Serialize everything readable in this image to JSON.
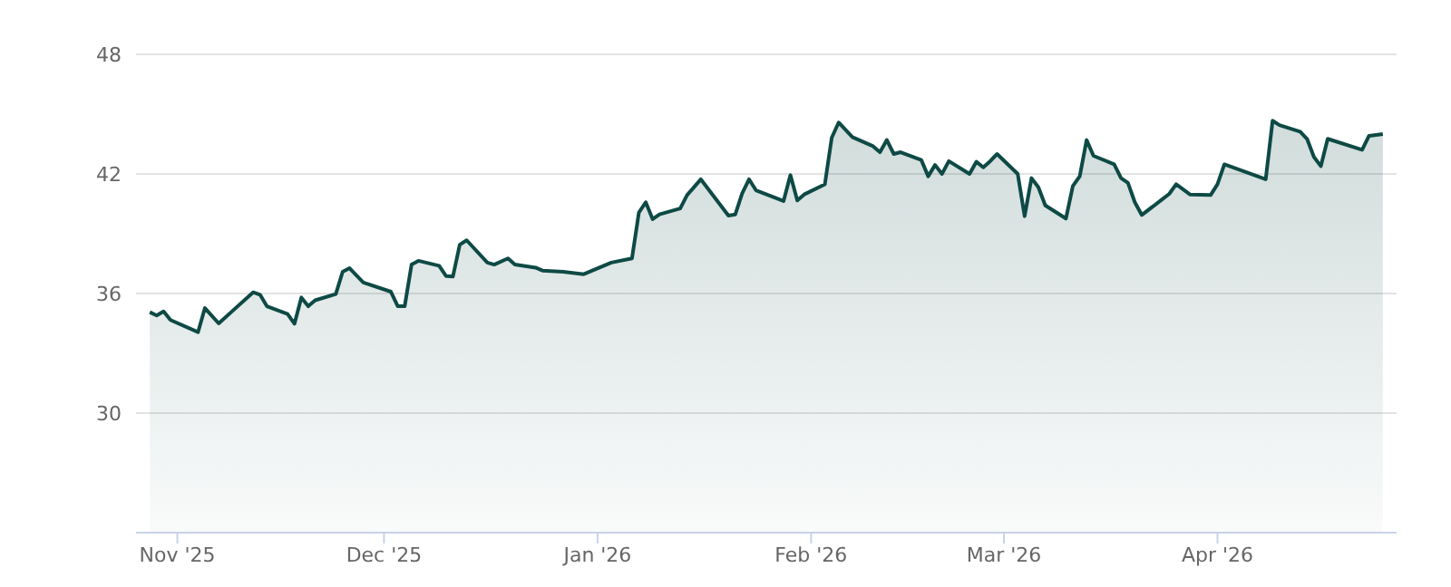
{
  "chart_data": {
    "type": "area",
    "color": "#0e4a45",
    "x": [
      "2025-10-28",
      "2025-10-29",
      "2025-10-30",
      "2025-10-31",
      "2025-11-04",
      "2025-11-05",
      "2025-11-07",
      "2025-11-12",
      "2025-11-13",
      "2025-11-14",
      "2025-11-17",
      "2025-11-18",
      "2025-11-19",
      "2025-11-20",
      "2025-11-21",
      "2025-11-24",
      "2025-11-25",
      "2025-11-26",
      "2025-11-28",
      "2025-12-02",
      "2025-12-03",
      "2025-12-04",
      "2025-12-05",
      "2025-12-06",
      "2025-12-09",
      "2025-12-10",
      "2025-12-11",
      "2025-12-12",
      "2025-12-13",
      "2025-12-16",
      "2025-12-17",
      "2025-12-19",
      "2025-12-20",
      "2025-12-23",
      "2025-12-24",
      "2025-12-27",
      "2025-12-30",
      "2026-01-03",
      "2026-01-06",
      "2026-01-07",
      "2026-01-08",
      "2026-01-09",
      "2026-01-10",
      "2026-01-13",
      "2026-01-14",
      "2026-01-16",
      "2026-01-20",
      "2026-01-21",
      "2026-01-22",
      "2026-01-23",
      "2026-01-24",
      "2026-01-28",
      "2026-01-29",
      "2026-01-30",
      "2026-01-31",
      "2026-02-03",
      "2026-02-04",
      "2026-02-05",
      "2026-02-07",
      "2026-02-10",
      "2026-02-11",
      "2026-02-12",
      "2026-02-13",
      "2026-02-14",
      "2026-02-17",
      "2026-02-18",
      "2026-02-19",
      "2026-02-20",
      "2026-02-21",
      "2026-02-24",
      "2026-02-25",
      "2026-02-26",
      "2026-02-27",
      "2026-02-28",
      "2026-03-03",
      "2026-03-04",
      "2026-03-05",
      "2026-03-06",
      "2026-03-07",
      "2026-03-10",
      "2026-03-11",
      "2026-03-12",
      "2026-03-13",
      "2026-03-14",
      "2026-03-17",
      "2026-03-18",
      "2026-03-19",
      "2026-03-20",
      "2026-03-21",
      "2026-03-24",
      "2026-03-25",
      "2026-03-26",
      "2026-03-28",
      "2026-03-31",
      "2026-04-01",
      "2026-04-02",
      "2026-04-08",
      "2026-04-09",
      "2026-04-10",
      "2026-04-13",
      "2026-04-14",
      "2026-04-15",
      "2026-04-16",
      "2026-04-17",
      "2026-04-22",
      "2026-04-23",
      "2026-04-25"
    ],
    "values": [
      35.06,
      34.9,
      35.1,
      34.67,
      34.06,
      35.27,
      34.5,
      36.06,
      35.94,
      35.36,
      34.97,
      34.48,
      35.8,
      35.36,
      35.66,
      35.97,
      37.09,
      37.27,
      36.55,
      36.09,
      35.36,
      35.36,
      37.45,
      37.64,
      37.39,
      36.88,
      36.85,
      38.45,
      38.67,
      37.55,
      37.45,
      37.76,
      37.45,
      37.3,
      37.15,
      37.09,
      36.97,
      37.55,
      37.76,
      40.06,
      40.58,
      39.73,
      39.97,
      40.27,
      40.94,
      41.73,
      39.91,
      39.97,
      41.03,
      41.73,
      41.18,
      40.64,
      41.94,
      40.67,
      40.97,
      41.48,
      43.82,
      44.58,
      43.85,
      43.39,
      43.09,
      43.7,
      43.0,
      43.09,
      42.7,
      41.88,
      42.45,
      42.0,
      42.64,
      42.0,
      42.61,
      42.33,
      42.64,
      43.0,
      42.0,
      39.88,
      41.79,
      41.33,
      40.42,
      39.76,
      41.39,
      41.88,
      43.7,
      42.91,
      42.48,
      41.79,
      41.55,
      40.58,
      39.94,
      40.73,
      41.0,
      41.48,
      40.97,
      40.94,
      41.48,
      42.48,
      41.73,
      44.67,
      44.45,
      44.12,
      43.76,
      42.85,
      42.39,
      43.76,
      43.21,
      43.91,
      44.0
    ],
    "xlim": [
      "2025-10-26",
      "2026-04-27"
    ],
    "xticks": [
      {
        "value": "2025-11-01",
        "label": "Nov '25"
      },
      {
        "value": "2025-12-01",
        "label": "Dec '25"
      },
      {
        "value": "2026-01-01",
        "label": "Jan '26"
      },
      {
        "value": "2026-02-01",
        "label": "Feb '26"
      },
      {
        "value": "2026-03-01",
        "label": "Mar '26"
      },
      {
        "value": "2026-04-01",
        "label": "Apr '26"
      }
    ],
    "ylim": [
      24,
      48
    ],
    "yticks": [
      30,
      36,
      42,
      48
    ],
    "grid": "y",
    "marker": "none"
  }
}
